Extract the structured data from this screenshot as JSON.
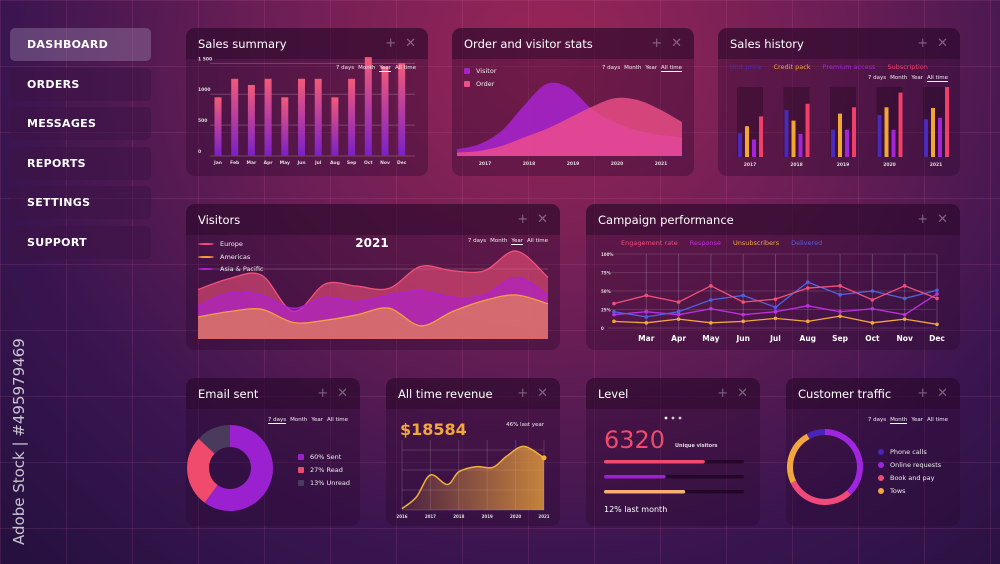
{
  "sidebar": {
    "items": [
      {
        "label": "DASHBOARD",
        "active": true
      },
      {
        "label": "ORDERS"
      },
      {
        "label": "MESSAGES"
      },
      {
        "label": "REPORTS"
      },
      {
        "label": "SETTINGS"
      },
      {
        "label": "SUPPORT"
      }
    ]
  },
  "watermark": "Adobe Stock | #495979469",
  "periods": [
    "7 days",
    "Month",
    "Year",
    "All time"
  ],
  "icons": {
    "add": "+",
    "close": "✕"
  },
  "chart_data": [
    {
      "id": "sales_summary",
      "type": "bar",
      "title": "Sales summary",
      "selected_period": "Year",
      "categories": [
        "Jan",
        "Feb",
        "Mar",
        "Apr",
        "May",
        "Jun",
        "Jul",
        "Aug",
        "Sep",
        "Oct",
        "Nov",
        "Dec"
      ],
      "values": [
        950,
        1250,
        1150,
        1250,
        950,
        1250,
        1250,
        950,
        1250,
        1600,
        1450,
        1500
      ],
      "yticks": [
        "0",
        "500",
        "1000",
        "1 500"
      ],
      "ylim": [
        0,
        1700
      ],
      "grid": true
    },
    {
      "id": "order_visitor",
      "type": "area",
      "title": "Order and visitor stats",
      "selected_period": "All time",
      "categories": [
        "2017",
        "2018",
        "2019",
        "2020",
        "2021"
      ],
      "x": [
        2016.5,
        2017,
        2017.5,
        2018,
        2018.5,
        2019,
        2019.5,
        2020,
        2020.5,
        2021,
        2021.5
      ],
      "series": [
        {
          "name": "Visitor",
          "color": "#a424c8",
          "values": [
            8,
            14,
            30,
            60,
            85,
            80,
            55,
            40,
            30,
            25,
            22
          ]
        },
        {
          "name": "Order",
          "color": "#f0508a",
          "values": [
            4,
            6,
            12,
            22,
            32,
            45,
            58,
            68,
            66,
            55,
            40
          ]
        }
      ]
    },
    {
      "id": "sales_history",
      "type": "bar",
      "title": "Sales history",
      "selected_period": "All time",
      "categories": [
        "2017",
        "2018",
        "2019",
        "2020",
        "2021"
      ],
      "series": [
        {
          "name": "Unit price",
          "color": "#4a2ab8",
          "values": [
            34,
            67,
            39,
            60,
            54
          ]
        },
        {
          "name": "Credit pack",
          "color": "#f2a634",
          "values": [
            44,
            52,
            62,
            71,
            70
          ]
        },
        {
          "name": "Premium access",
          "color": "#a424d8",
          "values": [
            25,
            33,
            39,
            39,
            56
          ]
        },
        {
          "name": "Subscription",
          "color": "#f0406a",
          "values": [
            58,
            76,
            71,
            92,
            100
          ]
        }
      ],
      "ylim": [
        0,
        100
      ]
    },
    {
      "id": "visitors",
      "type": "area",
      "title": "Visitors",
      "subtitle": "2021",
      "selected_period": "Year",
      "series": [
        {
          "name": "Europe",
          "color": "#f0507a",
          "values": [
            45,
            55,
            58,
            25,
            50,
            48,
            46,
            66,
            62,
            62,
            80,
            56
          ]
        },
        {
          "name": "Americas",
          "color": "#f2a040",
          "values": [
            20,
            25,
            27,
            15,
            17,
            22,
            28,
            12,
            25,
            35,
            40,
            32
          ]
        },
        {
          "name": "Asia & Pacific",
          "color": "#b020d8",
          "values": [
            30,
            42,
            40,
            28,
            38,
            34,
            40,
            44,
            38,
            40,
            56,
            40
          ]
        }
      ],
      "ylim": [
        0,
        100
      ]
    },
    {
      "id": "campaign",
      "type": "line",
      "title": "Campaign performance",
      "categories": [
        "",
        "Mar",
        "Apr",
        "May",
        "Jun",
        "Jul",
        "Aug",
        "Sep",
        "Oct",
        "Nov",
        "Dec"
      ],
      "yticks": [
        "0",
        "25%",
        "50%",
        "75%",
        "100%"
      ],
      "ylim": [
        0,
        100
      ],
      "grid": true,
      "series": [
        {
          "name": "Engagement rate",
          "color": "#f0507a",
          "values": [
            33,
            44,
            35,
            57,
            35,
            39,
            54,
            57,
            38,
            57,
            40
          ]
        },
        {
          "name": "Response",
          "color": "#c030e0",
          "values": [
            18,
            22,
            18,
            26,
            18,
            22,
            30,
            22,
            26,
            18,
            46
          ]
        },
        {
          "name": "Unsubscribers",
          "color": "#f2a640",
          "values": [
            9,
            7,
            12,
            7,
            9,
            13,
            9,
            16,
            7,
            12,
            5
          ]
        },
        {
          "name": "Delivered",
          "color": "#5060e0",
          "values": [
            22,
            15,
            22,
            38,
            44,
            28,
            62,
            45,
            50,
            40,
            51
          ]
        }
      ]
    },
    {
      "id": "email_sent",
      "type": "pie",
      "title": "Email sent",
      "selected_period": "7 days",
      "slices": [
        {
          "label": "60% Sent",
          "value": 60,
          "color": "#9a20d0"
        },
        {
          "label": "27% Read",
          "value": 27,
          "color": "#f04a6c"
        },
        {
          "label": "13% Unread",
          "value": 13,
          "color": "#4a3a5c"
        }
      ]
    },
    {
      "id": "revenue",
      "type": "area",
      "title": "All time revenue",
      "value": "$18584",
      "note": "46% last year",
      "categories": [
        "2016",
        "2017",
        "2018",
        "2019",
        "2020",
        "2021"
      ],
      "x": [
        2016,
        2016.5,
        2017,
        2017.6,
        2018,
        2018.6,
        2019.2,
        2019.7,
        2020.3,
        2021
      ],
      "values": [
        2,
        20,
        55,
        40,
        60,
        68,
        67,
        85,
        100,
        82
      ],
      "ylim": [
        0,
        110
      ]
    },
    {
      "id": "customer_traffic",
      "type": "pie",
      "title": "Customer traffic",
      "selected_period": "Month",
      "slices": [
        {
          "label": "Online requests",
          "value": 38,
          "color": "#a024e0"
        },
        {
          "label": "Book and pay",
          "value": 30,
          "color": "#f04a7a"
        },
        {
          "label": "Tows",
          "value": 24,
          "color": "#f2a640"
        },
        {
          "label": "Phone calls",
          "value": 8,
          "color": "#4a24b8"
        }
      ],
      "legend_order": [
        "Phone calls",
        "Online requests",
        "Book and pay",
        "Tows"
      ]
    }
  ],
  "level": {
    "title": "Level",
    "value": "6320",
    "label": "Unique visitors",
    "bars": [
      {
        "value": 72,
        "color": "#f04a6c"
      },
      {
        "value": 44,
        "color": "#a020d0"
      },
      {
        "value": 58,
        "color": "#f7b070"
      }
    ],
    "note": "12% last month"
  }
}
